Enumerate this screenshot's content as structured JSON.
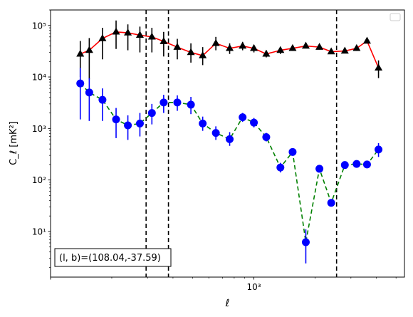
{
  "chart_data": {
    "type": "scatter",
    "xscale": "log",
    "yscale": "log",
    "xlim": [
      100,
      5500
    ],
    "ylim": [
      1.3,
      200000
    ],
    "xlabel": "ℓ",
    "ylabel": "C_ℓ [mK²]",
    "x_ticks": [
      {
        "value": 1000,
        "label": "10³"
      }
    ],
    "y_ticks": [
      {
        "value": 10,
        "label": "10¹"
      },
      {
        "value": 100,
        "label": "10²"
      },
      {
        "value": 1000,
        "label": "10³"
      },
      {
        "value": 10000,
        "label": "10⁴"
      },
      {
        "value": 100000,
        "label": "10⁵"
      }
    ],
    "grid": false,
    "legend": {
      "placement": "top-right",
      "entries": []
    },
    "annotation": "(l, b)=(108.04,-37.59)",
    "vlines": [
      295,
      380,
      2550
    ],
    "series": [
      {
        "marker": "triangle",
        "marker_color": "#000000",
        "line_color": "#ff0000",
        "line_style": "solid",
        "errorbar_color": "#000000",
        "points": [
          {
            "x": 140,
            "y": 28000,
            "lo": 10000,
            "hi": 50000
          },
          {
            "x": 155,
            "y": 33000,
            "lo": 9000,
            "hi": 57000
          },
          {
            "x": 180,
            "y": 56000,
            "lo": 22000,
            "hi": 90000
          },
          {
            "x": 210,
            "y": 75000,
            "lo": 35000,
            "hi": 125000
          },
          {
            "x": 240,
            "y": 72000,
            "lo": 33000,
            "hi": 105000
          },
          {
            "x": 275,
            "y": 65000,
            "lo": 30000,
            "hi": 95000
          },
          {
            "x": 315,
            "y": 60000,
            "lo": 30000,
            "hi": 90000
          },
          {
            "x": 360,
            "y": 49000,
            "lo": 25000,
            "hi": 75000
          },
          {
            "x": 420,
            "y": 38000,
            "lo": 22000,
            "hi": 55000
          },
          {
            "x": 490,
            "y": 30000,
            "lo": 19000,
            "hi": 45000
          },
          {
            "x": 560,
            "y": 26000,
            "lo": 17000,
            "hi": 38000
          },
          {
            "x": 650,
            "y": 45000,
            "lo": 33000,
            "hi": 60000
          },
          {
            "x": 760,
            "y": 36000,
            "lo": 28000,
            "hi": 45000
          },
          {
            "x": 880,
            "y": 40000,
            "lo": 33000,
            "hi": 48000
          },
          {
            "x": 1000,
            "y": 36000,
            "lo": 30000,
            "hi": 42000
          },
          {
            "x": 1150,
            "y": 28000,
            "lo": 24000,
            "hi": 33000
          },
          {
            "x": 1350,
            "y": 33000,
            "lo": 28000,
            "hi": 38000
          },
          {
            "x": 1550,
            "y": 36000,
            "lo": 32000,
            "hi": 41000
          },
          {
            "x": 1800,
            "y": 40000,
            "lo": 36000,
            "hi": 45000
          },
          {
            "x": 2100,
            "y": 38000,
            "lo": 34000,
            "hi": 43000
          },
          {
            "x": 2400,
            "y": 31000,
            "lo": 28000,
            "hi": 35000
          },
          {
            "x": 2800,
            "y": 32000,
            "lo": 29000,
            "hi": 36000
          },
          {
            "x": 3200,
            "y": 36000,
            "lo": 32000,
            "hi": 41000
          },
          {
            "x": 3600,
            "y": 50000,
            "lo": 45000,
            "hi": 56000
          },
          {
            "x": 4100,
            "y": 15000,
            "lo": 9500,
            "hi": 21000
          }
        ]
      },
      {
        "marker": "circle",
        "marker_color": "#0000ff",
        "line_color": "#008000",
        "line_style": "dashed",
        "errorbar_color": "#0000ff",
        "points": [
          {
            "x": 140,
            "y": 7500,
            "lo": 1500,
            "hi": 15000
          },
          {
            "x": 155,
            "y": 5000,
            "lo": 1400,
            "hi": 9500
          },
          {
            "x": 180,
            "y": 3600,
            "lo": 1400,
            "hi": 6000
          },
          {
            "x": 210,
            "y": 1500,
            "lo": 650,
            "hi": 2500
          },
          {
            "x": 240,
            "y": 1150,
            "lo": 600,
            "hi": 1800
          },
          {
            "x": 275,
            "y": 1250,
            "lo": 700,
            "hi": 2000
          },
          {
            "x": 315,
            "y": 2000,
            "lo": 1200,
            "hi": 3000
          },
          {
            "x": 360,
            "y": 3200,
            "lo": 2000,
            "hi": 4500
          },
          {
            "x": 420,
            "y": 3200,
            "lo": 2200,
            "hi": 4400
          },
          {
            "x": 490,
            "y": 2900,
            "lo": 1900,
            "hi": 4100
          },
          {
            "x": 560,
            "y": 1250,
            "lo": 900,
            "hi": 1700
          },
          {
            "x": 650,
            "y": 820,
            "lo": 600,
            "hi": 1100
          },
          {
            "x": 760,
            "y": 620,
            "lo": 460,
            "hi": 850
          },
          {
            "x": 880,
            "y": 1650,
            "lo": 1350,
            "hi": 2000
          },
          {
            "x": 1000,
            "y": 1300,
            "lo": 1050,
            "hi": 1600
          },
          {
            "x": 1150,
            "y": 680,
            "lo": 560,
            "hi": 820
          },
          {
            "x": 1350,
            "y": 175,
            "lo": 140,
            "hi": 215
          },
          {
            "x": 1550,
            "y": 350,
            "lo": 310,
            "hi": 400
          },
          {
            "x": 1800,
            "y": 6.2,
            "lo": 2.4,
            "hi": 11
          },
          {
            "x": 2100,
            "y": 165,
            "lo": 145,
            "hi": 190
          },
          {
            "x": 2400,
            "y": 36,
            "lo": 31,
            "hi": 42
          },
          {
            "x": 2800,
            "y": 195,
            "lo": 175,
            "hi": 215
          },
          {
            "x": 3200,
            "y": 205,
            "lo": 185,
            "hi": 225
          },
          {
            "x": 3600,
            "y": 200,
            "lo": 170,
            "hi": 235
          },
          {
            "x": 4100,
            "y": 390,
            "lo": 280,
            "hi": 520
          }
        ]
      }
    ]
  }
}
